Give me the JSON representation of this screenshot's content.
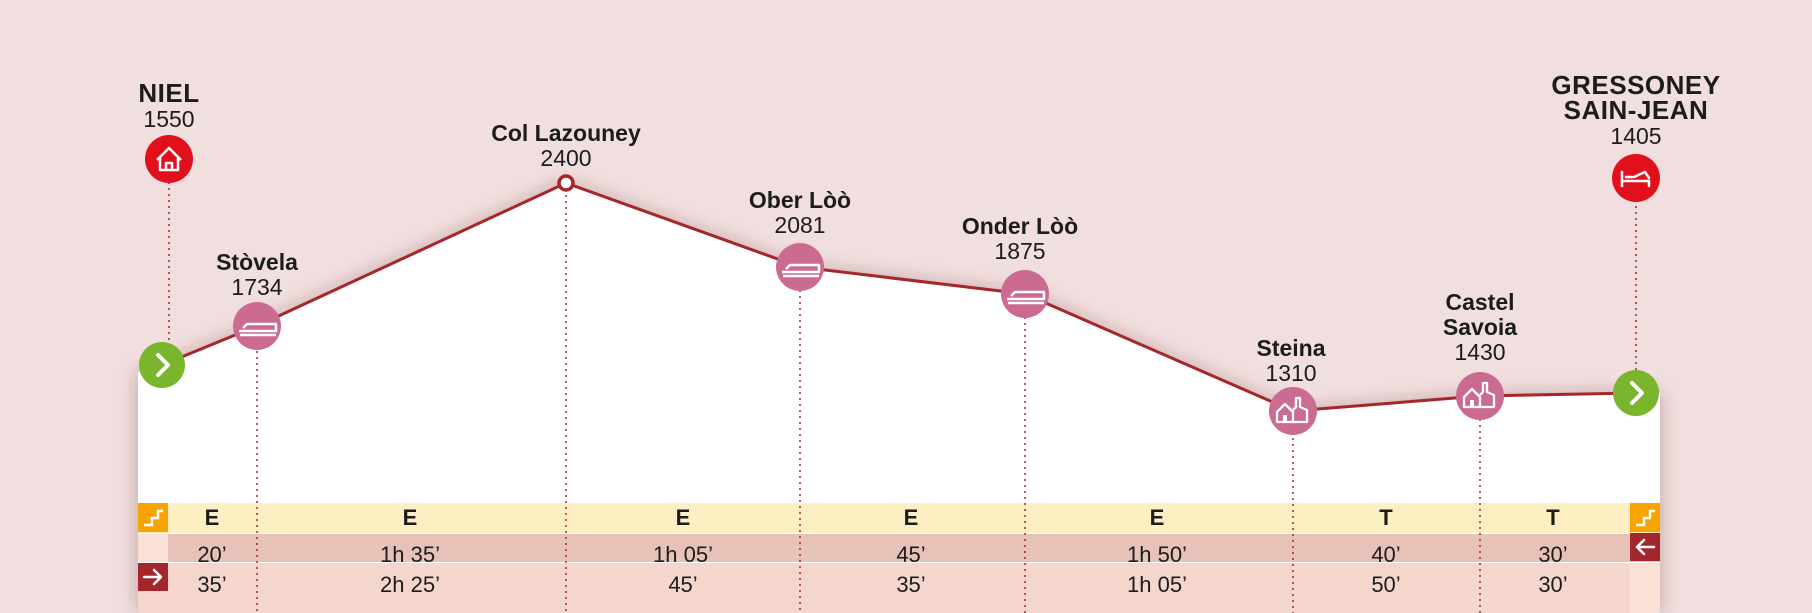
{
  "points": [
    {
      "name_lines": [
        "NIEL"
      ],
      "elevation": "1550",
      "icon": "house-icon",
      "kind": "start"
    },
    {
      "name_lines": [
        "Stòvela"
      ],
      "elevation": "1734",
      "icon": "hut-icon",
      "kind": "hut"
    },
    {
      "name_lines": [
        "Col Lazouney"
      ],
      "elevation": "2400",
      "icon": "pass-marker-icon",
      "kind": "pass"
    },
    {
      "name_lines": [
        "Ober Lòò"
      ],
      "elevation": "2081",
      "icon": "hut-icon",
      "kind": "hut"
    },
    {
      "name_lines": [
        "Onder Lòò"
      ],
      "elevation": "1875",
      "icon": "hut-icon",
      "kind": "hut"
    },
    {
      "name_lines": [
        "Steina"
      ],
      "elevation": "1310",
      "icon": "village-icon",
      "kind": "village"
    },
    {
      "name_lines": [
        "Castel",
        "Savoia"
      ],
      "elevation": "1430",
      "icon": "village-icon",
      "kind": "village"
    },
    {
      "name_lines": [
        "GRESSONEY",
        "SAIN-JEAN"
      ],
      "elevation": "1405",
      "icon": "bed-icon",
      "kind": "end"
    }
  ],
  "difficulty": [
    "E",
    "E",
    "E",
    "E",
    "E",
    "T",
    "T"
  ],
  "times_reverse": [
    "20’",
    "1h 35’",
    "1h 05’",
    "45’",
    "1h 50’",
    "40’",
    "30’"
  ],
  "times_forward": [
    "35’",
    "2h 25’",
    "45’",
    "35’",
    "1h 05’",
    "50’",
    "30’"
  ],
  "colors": {
    "background": "#f1dede",
    "profile_line": "#a6262b",
    "difficulty_band": "#fcf0c2",
    "time_band_1": "#e6c2b8",
    "time_band_2": "#f4d6cc",
    "start_arrow": "#7ab52d",
    "end_icon": "#e2101d",
    "hut_icon": "#cc6b92",
    "forward_arrow_box": "#a3262c",
    "difficulty_icon": "#f7a400"
  }
}
